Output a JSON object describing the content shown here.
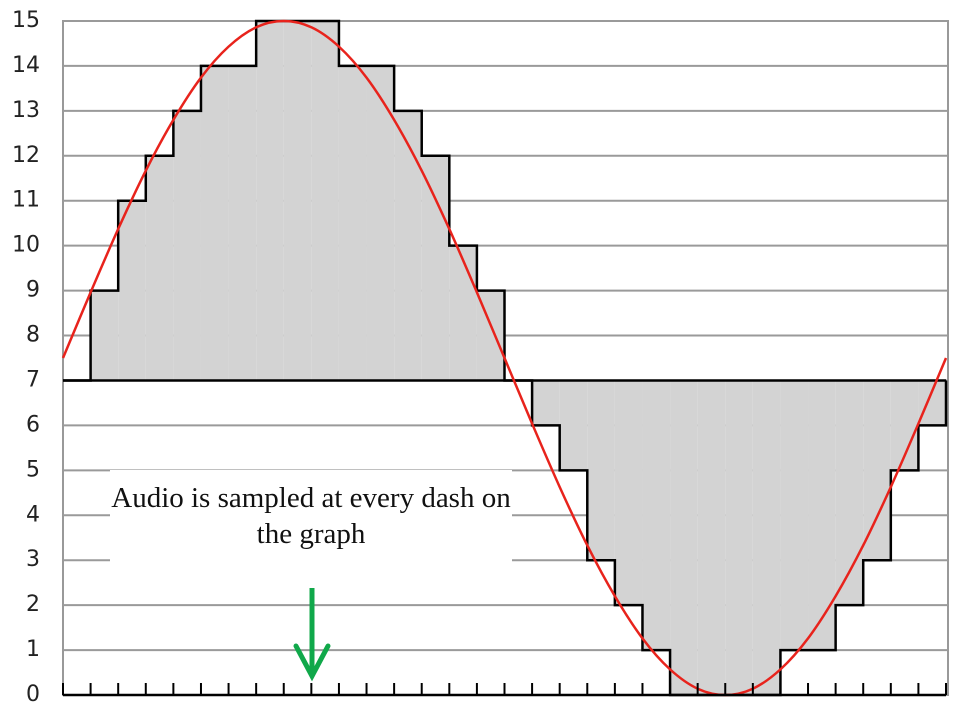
{
  "chart_data": {
    "type": "step",
    "xlim": [
      0,
      32
    ],
    "xticks": [
      0,
      1,
      2,
      3,
      4,
      5,
      6,
      7,
      8,
      9,
      10,
      11,
      12,
      13,
      14,
      15,
      16,
      17,
      18,
      19,
      20,
      21,
      22,
      23,
      24,
      25,
      26,
      27,
      28,
      29,
      30,
      31,
      32
    ],
    "ylim": [
      0,
      15
    ],
    "yticks": [
      0,
      1,
      2,
      3,
      4,
      5,
      6,
      7,
      8,
      9,
      10,
      11,
      12,
      13,
      14,
      15
    ],
    "grid": true,
    "baseline": 7,
    "series": [
      {
        "type": "step",
        "color": "#d3d3d3",
        "values": [
          7,
          9,
          11,
          12,
          13,
          14,
          14,
          15,
          15,
          15,
          14,
          14,
          13,
          12,
          10,
          9,
          7,
          6,
          5,
          3,
          2,
          1,
          0,
          0,
          0,
          0,
          1,
          1,
          2,
          3,
          5,
          6
        ]
      },
      {
        "type": "line",
        "color": "#e8231c",
        "x": [
          0,
          1,
          2,
          3,
          4,
          5,
          6,
          7,
          8,
          9,
          10,
          11,
          12,
          13,
          14,
          15,
          16,
          17,
          18,
          19,
          20,
          21,
          22,
          23,
          24,
          25,
          26,
          27,
          28,
          29,
          30,
          31,
          32
        ],
        "values": [
          7.5,
          8.96,
          10.37,
          11.67,
          12.8,
          13.74,
          14.43,
          14.86,
          15,
          14.86,
          14.43,
          13.74,
          12.8,
          11.67,
          10.37,
          8.96,
          7.5,
          6.04,
          4.63,
          3.33,
          2.2,
          1.26,
          0.57,
          0.14,
          0,
          0.14,
          0.57,
          1.26,
          2.2,
          3.33,
          4.63,
          6.04,
          7.5
        ]
      }
    ],
    "annotation": "Audio is sampled at every dash on the graph"
  }
}
